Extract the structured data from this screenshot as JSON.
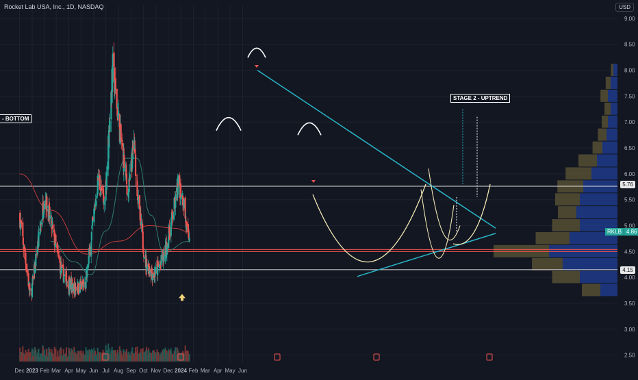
{
  "header": {
    "symbol_title": "Rocket Lab USA, Inc., 1D, NASDAQ",
    "currency": "USD"
  },
  "colors": {
    "background": "#131722",
    "grid": "#1e222d",
    "axis_text": "#b2b5be",
    "candle_up": "#26a69a",
    "candle_down": "#ef5350",
    "ma_red": "#c23b3b",
    "ma_green": "#2f7d6b",
    "trendline": "#29b6c8",
    "cup_curve": "#f0e6b4",
    "hline_white": "#e0e0e0",
    "hline_red": "#ef5350",
    "vp_up": "#1e3a8a",
    "vp_down": "#5a5234"
  },
  "annotations": {
    "bottom_label": "- BOTTOM",
    "stage2_label": "STAGE 2 - UPTREND"
  },
  "price_tags": {
    "level_576": "5.76",
    "level_415": "4.15",
    "last_symbol": "RKLB",
    "last_price": "4.86"
  },
  "chart_data": {
    "type": "candlestick",
    "title": "Rocket Lab USA, Inc., 1D, NASDAQ",
    "x_tick_labels": [
      "Dec",
      "2023",
      "Feb",
      "Mar",
      "Apr",
      "May",
      "Jun",
      "Jul",
      "Aug",
      "Sep",
      "Oct",
      "Nov",
      "Dec",
      "2024",
      "Feb",
      "Mar",
      "Apr",
      "May",
      "Jun"
    ],
    "y_tick_labels": [
      "9.00",
      "8.50",
      "8.00",
      "7.50",
      "7.00",
      "6.50",
      "6.00",
      "5.50",
      "5.00",
      "4.50",
      "4.00",
      "3.50",
      "3.00",
      "2.50"
    ],
    "ylim": [
      2.35,
      9.25
    ],
    "grid": true,
    "key_points": [
      {
        "date": "2022-12-01",
        "price": 5.2
      },
      {
        "date": "2022-12-28",
        "price": 3.6
      },
      {
        "date": "2023-02-01",
        "price": 5.6
      },
      {
        "date": "2023-03-14",
        "price": 4.1
      },
      {
        "date": "2023-04-10",
        "price": 3.8
      },
      {
        "date": "2023-05-12",
        "price": 3.85
      },
      {
        "date": "2023-06-12",
        "price": 5.9
      },
      {
        "date": "2023-06-28",
        "price": 5.4
      },
      {
        "date": "2023-07-18",
        "price": 8.05
      },
      {
        "date": "2023-08-03",
        "price": 6.9
      },
      {
        "date": "2023-08-25",
        "price": 5.6
      },
      {
        "date": "2023-09-08",
        "price": 6.6
      },
      {
        "date": "2023-09-20",
        "price": 5.3
      },
      {
        "date": "2023-10-06",
        "price": 4.3
      },
      {
        "date": "2023-10-27",
        "price": 4.05
      },
      {
        "date": "2023-11-22",
        "price": 4.4
      },
      {
        "date": "2023-12-27",
        "price": 5.8
      },
      {
        "date": "2024-01-08",
        "price": 5.5
      },
      {
        "date": "2024-01-18",
        "price": 4.7
      },
      {
        "date": "2024-01-23",
        "price": 4.86
      }
    ],
    "moving_averages": [
      {
        "name": "red",
        "points": [
          [
            "2022-12-01",
            6.0
          ],
          [
            "2023-02-15",
            5.3
          ],
          [
            "2023-05-15",
            4.45
          ],
          [
            "2023-08-01",
            4.7
          ],
          [
            "2023-10-15",
            5.0
          ],
          [
            "2023-12-15",
            4.95
          ],
          [
            "2024-01-23",
            4.88
          ]
        ]
      },
      {
        "name": "green",
        "points": [
          [
            "2023-02-15",
            4.7
          ],
          [
            "2023-04-15",
            4.3
          ],
          [
            "2023-05-25",
            4.05
          ],
          [
            "2023-07-01",
            4.9
          ],
          [
            "2023-08-20",
            6.3
          ],
          [
            "2023-09-15",
            6.3
          ],
          [
            "2023-10-20",
            5.2
          ],
          [
            "2023-11-20",
            4.5
          ],
          [
            "2024-01-23",
            4.7
          ]
        ]
      }
    ],
    "volume_profile": [
      {
        "price": 8.0,
        "up": 6,
        "down": 4
      },
      {
        "price": 7.75,
        "up": 10,
        "down": 8
      },
      {
        "price": 7.5,
        "up": 14,
        "down": 12
      },
      {
        "price": 7.25,
        "up": 10,
        "down": 10
      },
      {
        "price": 7.0,
        "up": 14,
        "down": 10
      },
      {
        "price": 6.75,
        "up": 16,
        "down": 14
      },
      {
        "price": 6.5,
        "up": 22,
        "down": 16
      },
      {
        "price": 6.25,
        "up": 30,
        "down": 30
      },
      {
        "price": 6.0,
        "up": 38,
        "down": 42
      },
      {
        "price": 5.75,
        "up": 50,
        "down": 42
      },
      {
        "price": 5.5,
        "up": 55,
        "down": 40
      },
      {
        "price": 5.25,
        "up": 60,
        "down": 30
      },
      {
        "price": 5.0,
        "up": 55,
        "down": 45
      },
      {
        "price": 4.75,
        "up": 70,
        "down": 55
      },
      {
        "price": 4.5,
        "up": 100,
        "down": 90
      },
      {
        "price": 4.25,
        "up": 80,
        "down": 50
      },
      {
        "price": 4.0,
        "up": 55,
        "down": 45
      },
      {
        "price": 3.75,
        "up": 25,
        "down": 30
      }
    ],
    "horizontal_levels": [
      5.76,
      4.54,
      4.5,
      4.15
    ]
  }
}
